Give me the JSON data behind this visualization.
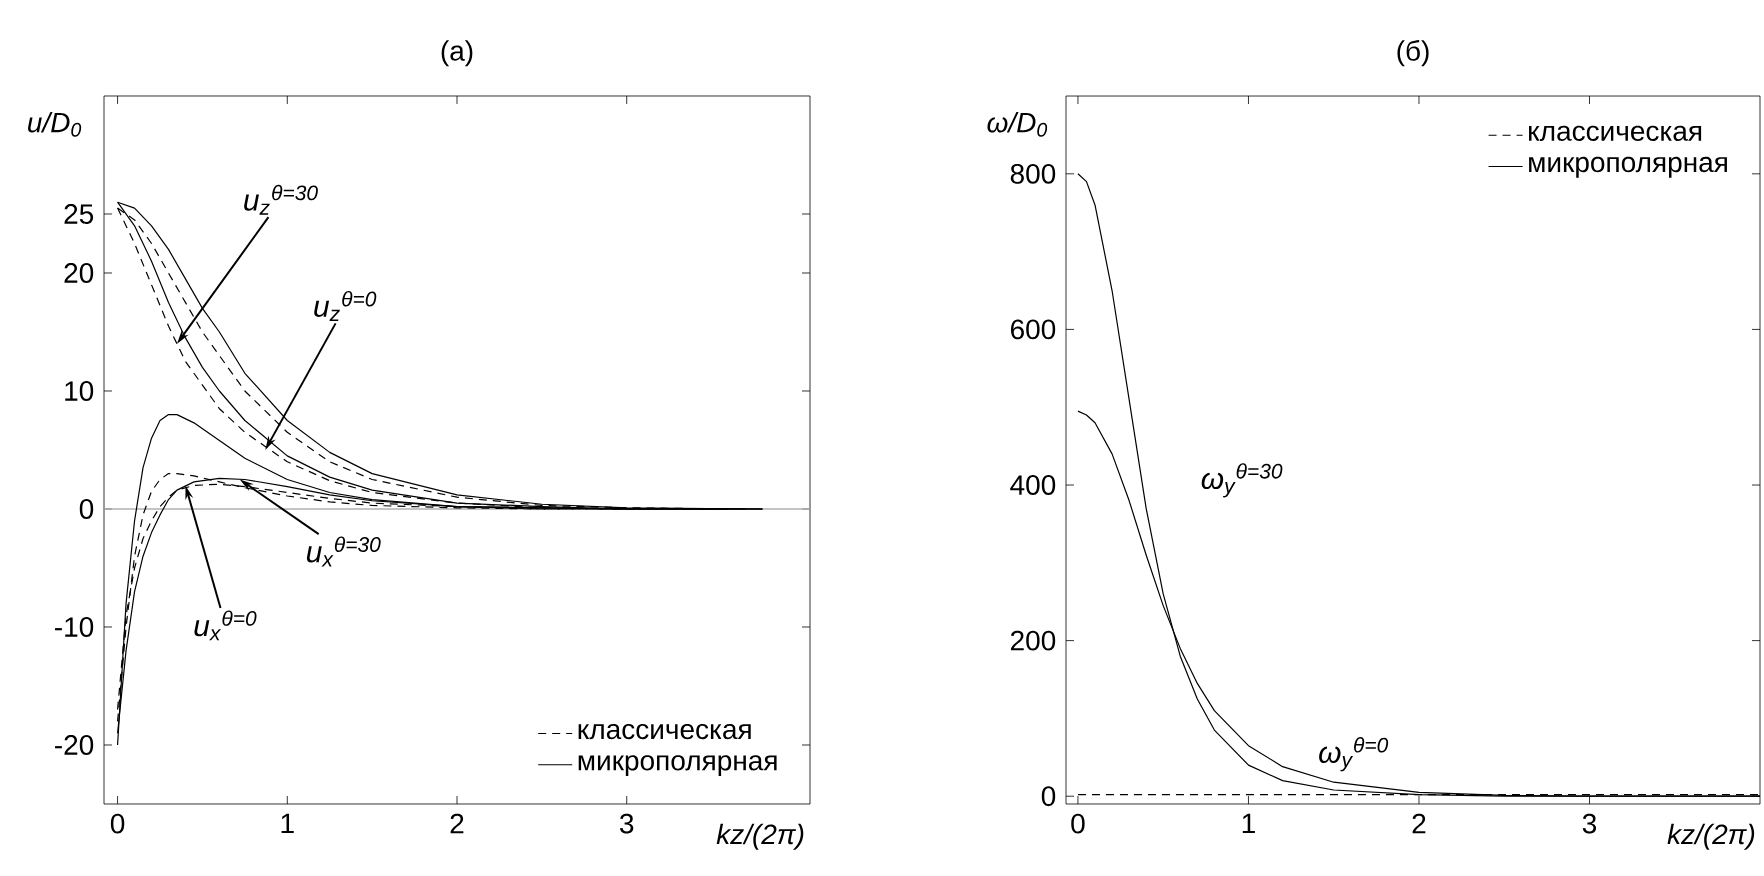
{
  "chart_data": [
    {
      "type": "line",
      "title": "(a)",
      "xlabel": "kz/(2π)",
      "ylabel": "u/D$_{0}$",
      "xlim": [
        -0.08,
        4.08
      ],
      "ylim": [
        -25,
        35
      ],
      "xticks": [
        0,
        1,
        2,
        3
      ],
      "yticks": [
        -20,
        -10,
        0,
        10,
        20,
        25
      ],
      "legend": "bottom right",
      "grid": false,
      "ref_lines": [
        {
          "axis": "y",
          "value": 0,
          "color": "#b0b0b0"
        }
      ],
      "series": [
        {
          "name": "классическая",
          "color": "#000000",
          "line_style": "dashed",
          "x": [
            0,
            0.1,
            0.2,
            0.3,
            0.4,
            0.5,
            0.6,
            0.75,
            1.0,
            1.25,
            1.5,
            2.0,
            2.5,
            3.0,
            3.6
          ],
          "values": [
            25.5,
            24.5,
            22.5,
            20,
            17.5,
            15,
            13,
            10,
            6.5,
            4,
            2.5,
            1,
            0.3,
            0.1,
            0
          ]
        },
        {
          "name": "микрополярная",
          "color": "#000000",
          "line_style": "solid",
          "x": [
            0,
            0.1,
            0.2,
            0.3,
            0.4,
            0.5,
            0.6,
            0.75,
            1.0,
            1.25,
            1.5,
            2.0,
            2.5,
            3.0,
            3.8
          ],
          "values": [
            26,
            25.5,
            24,
            22,
            19.5,
            17,
            15,
            11.5,
            7.5,
            4.8,
            3,
            1.2,
            0.4,
            0.1,
            0
          ]
        },
        {
          "color": "#000000",
          "line_style": "solid",
          "x": [
            0,
            0.1,
            0.2,
            0.3,
            0.4,
            0.5,
            0.6,
            0.75,
            1.0,
            1.25,
            1.5,
            2.0,
            2.5,
            3.0,
            3.7
          ],
          "values": [
            26,
            24,
            21,
            17.5,
            14.5,
            12,
            10,
            7.5,
            4.5,
            2.7,
            1.6,
            0.5,
            0.2,
            0,
            0
          ]
        },
        {
          "color": "#000000",
          "line_style": "dashed",
          "x": [
            0,
            0.1,
            0.2,
            0.3,
            0.4,
            0.5,
            0.6,
            0.75,
            1.0,
            1.25,
            1.5,
            2.0,
            2.5,
            3.0,
            3.5
          ],
          "values": [
            25.5,
            22.5,
            19,
            15.5,
            12.5,
            10.5,
            8.5,
            6.5,
            4,
            2.4,
            1.4,
            0.5,
            0.1,
            0,
            0
          ]
        },
        {
          "color": "#000000",
          "line_style": "solid",
          "x": [
            0,
            0.05,
            0.1,
            0.15,
            0.2,
            0.25,
            0.3,
            0.35,
            0.45,
            0.6,
            0.75,
            1.0,
            1.25,
            1.5,
            2,
            2.5,
            3,
            3.8
          ],
          "values": [
            -20,
            -8,
            -1,
            3.5,
            6,
            7.5,
            8,
            8,
            7.3,
            5.8,
            4.3,
            2.5,
            1.4,
            0.8,
            0.2,
            0.1,
            0,
            0
          ]
        },
        {
          "color": "#000000",
          "line_style": "dashed",
          "x": [
            0,
            0.05,
            0.1,
            0.15,
            0.2,
            0.25,
            0.3,
            0.35,
            0.45,
            0.6,
            0.75,
            1.0,
            1.25,
            1.5,
            2,
            2.5,
            3,
            3.6
          ],
          "values": [
            -18,
            -10,
            -4,
            -0.5,
            1.5,
            2.5,
            3,
            3,
            2.8,
            2.3,
            1.8,
            1.1,
            0.6,
            0.3,
            0.1,
            0,
            0,
            0
          ]
        },
        {
          "color": "#000000",
          "line_style": "solid",
          "x": [
            0,
            0.05,
            0.1,
            0.15,
            0.2,
            0.25,
            0.3,
            0.35,
            0.45,
            0.6,
            0.75,
            1.0,
            1.25,
            1.5,
            2,
            2.5,
            3,
            3.8
          ],
          "values": [
            -19,
            -12,
            -7,
            -4,
            -2,
            -0.5,
            0.8,
            1.6,
            2.3,
            2.6,
            2.5,
            1.9,
            1.2,
            0.7,
            0.2,
            0.1,
            0,
            0
          ]
        },
        {
          "color": "#000000",
          "line_style": "dashed",
          "x": [
            0,
            0.05,
            0.1,
            0.15,
            0.2,
            0.25,
            0.3,
            0.35,
            0.45,
            0.6,
            0.75,
            1.0,
            1.25,
            1.5,
            2,
            2.5,
            3,
            3.6
          ],
          "values": [
            -17,
            -9,
            -5,
            -2.5,
            -1,
            0.2,
            1,
            1.6,
            2,
            2.1,
            1.9,
            1.4,
            0.9,
            0.5,
            0.2,
            0,
            0,
            0
          ]
        }
      ],
      "annotations": [
        {
          "text": "u$_{z}$$^{θ=30}$",
          "x": 0.35,
          "y": 14
        },
        {
          "text": "u$_{z}$$^{θ=0}$",
          "x": 0.87,
          "y": 5
        },
        {
          "text": "u$_{x}$$^{θ=30}$",
          "x": 0.72,
          "y": 2.5
        },
        {
          "text": "u$_{x}$$^{θ=0}$",
          "x": 0.4,
          "y": 2
        }
      ]
    },
    {
      "type": "line",
      "title": "(б)",
      "xlabel": "kz/(2π)",
      "ylabel": "ω/D$_{0}$",
      "xlim": [
        -0.07,
        4.0
      ],
      "ylim": [
        -10,
        900
      ],
      "xticks": [
        0,
        1,
        2,
        3
      ],
      "yticks": [
        0,
        200,
        400,
        600,
        800
      ],
      "legend": "top right",
      "grid": false,
      "series": [
        {
          "name": "классическая",
          "color": "#000000",
          "line_style": "dashed",
          "x": [
            0,
            4
          ],
          "values": [
            2,
            2
          ]
        },
        {
          "name": "микрополярная",
          "color": "#000000",
          "line_style": "solid",
          "x": [
            0,
            0.05,
            0.1,
            0.2,
            0.3,
            0.4,
            0.5,
            0.6,
            0.7,
            0.8,
            1.0,
            1.2,
            1.5,
            2.0,
            2.5,
            3,
            4
          ],
          "values": [
            800,
            790,
            760,
            650,
            510,
            370,
            260,
            180,
            125,
            85,
            40,
            20,
            8,
            2,
            0,
            0,
            0
          ]
        },
        {
          "color": "#000000",
          "line_style": "solid",
          "x": [
            0,
            0.05,
            0.1,
            0.2,
            0.3,
            0.4,
            0.5,
            0.6,
            0.7,
            0.8,
            1.0,
            1.2,
            1.5,
            2.0,
            2.5,
            3,
            4
          ],
          "values": [
            495,
            490,
            480,
            440,
            380,
            310,
            245,
            190,
            145,
            110,
            65,
            38,
            18,
            5,
            1,
            0,
            0
          ]
        }
      ],
      "annotations": [
        {
          "text": "ω$_{y}$$^{θ=30}$",
          "x": 0.4,
          "y": 370
        },
        {
          "text": "ω$_{y}$$^{θ=0}$",
          "x": 1.5,
          "y": 18
        }
      ]
    }
  ]
}
